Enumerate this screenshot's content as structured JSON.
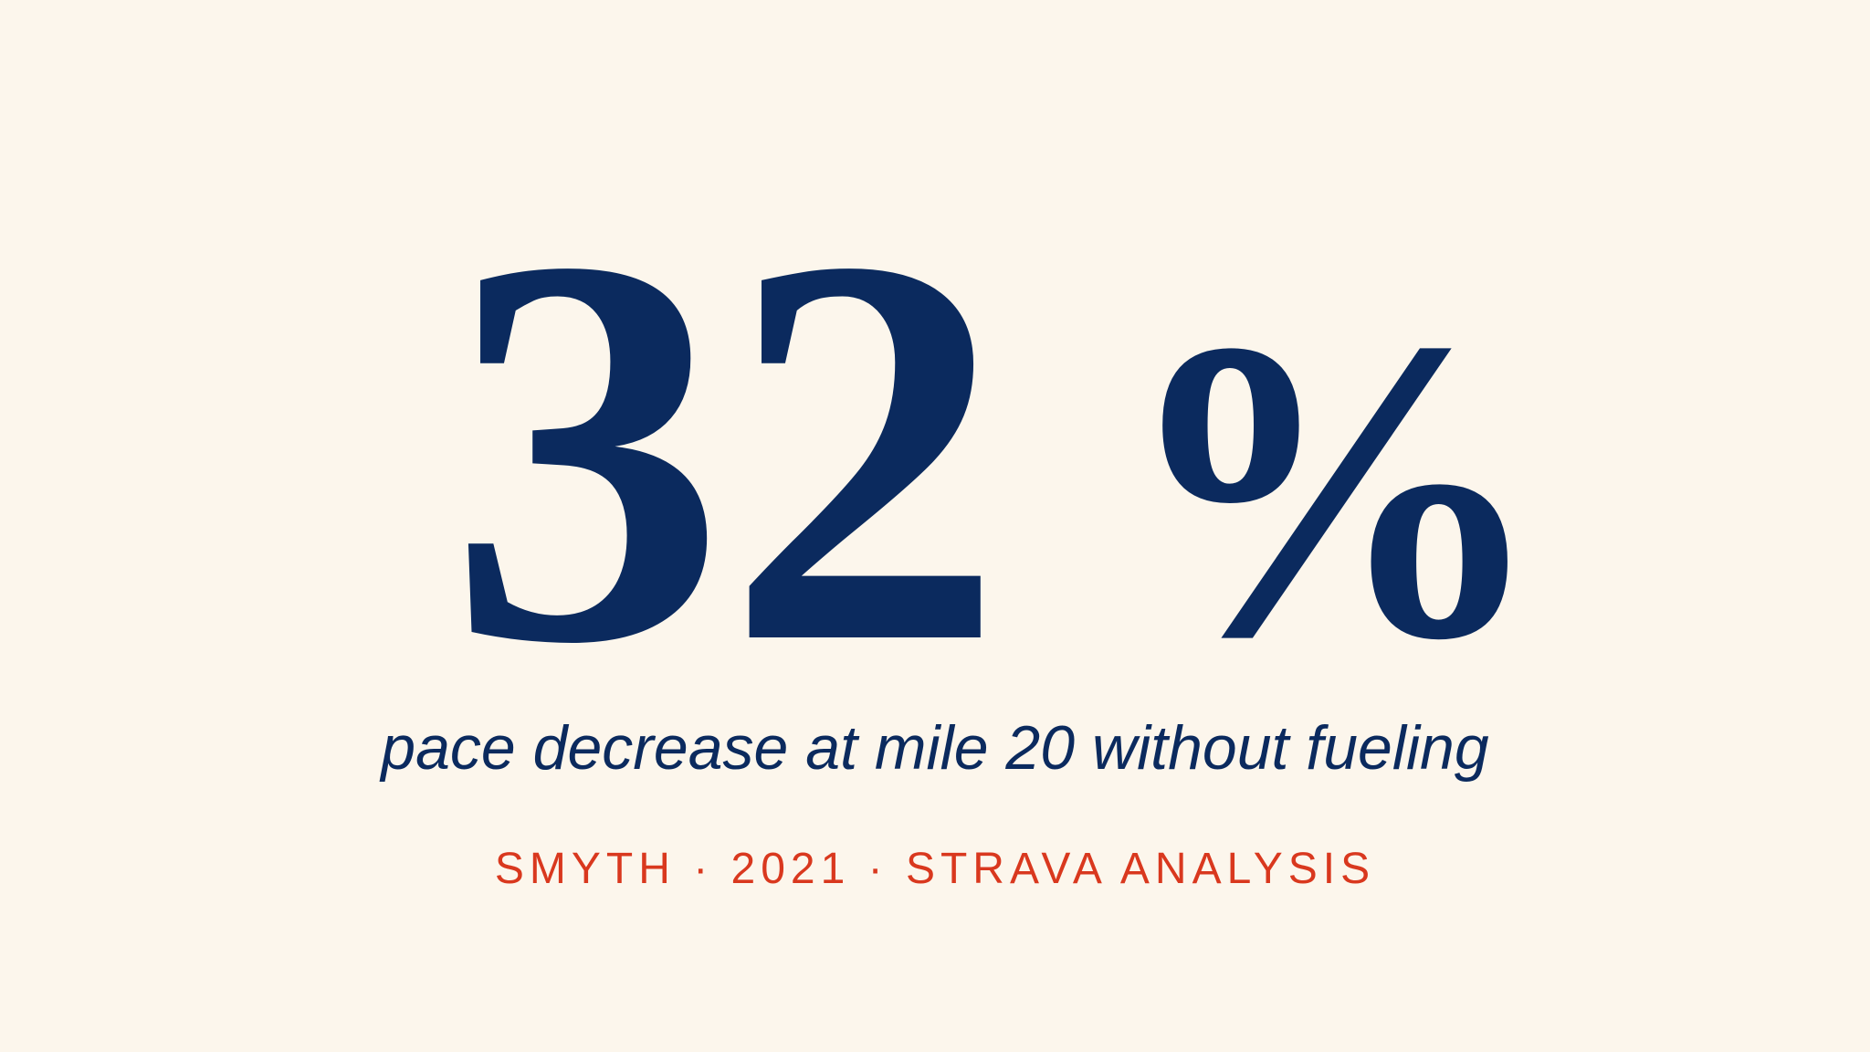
{
  "stat": {
    "value": 32,
    "unit": "%"
  },
  "caption": "pace decrease at mile 20 without fueling",
  "source": "SMYTH · 2021 · STRAVA ANALYSIS"
}
